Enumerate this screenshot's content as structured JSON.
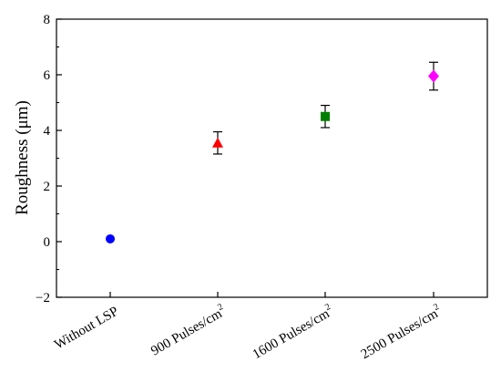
{
  "chart_data": {
    "type": "scatter",
    "title": "",
    "xlabel": "",
    "ylabel": "Roughness (μm)",
    "ylim": [
      -2,
      8
    ],
    "yticks": [
      -2,
      0,
      2,
      4,
      6,
      8
    ],
    "grid": false,
    "categories": [
      {
        "base": "Without LSP",
        "sup": ""
      },
      {
        "base": "900 Pulses/cm",
        "sup": "2"
      },
      {
        "base": "1600 Pulses/cm",
        "sup": "2"
      },
      {
        "base": "2500 Pulses/cm",
        "sup": "2"
      }
    ],
    "points": [
      {
        "value": 0.1,
        "error": 0.0,
        "marker": "circle",
        "color": "#0000ff"
      },
      {
        "value": 3.55,
        "error": 0.4,
        "marker": "triangle",
        "color": "#ff0000"
      },
      {
        "value": 4.5,
        "error": 0.4,
        "marker": "square",
        "color": "#008000"
      },
      {
        "value": 5.95,
        "error": 0.5,
        "marker": "diamond",
        "color": "#ff00ff"
      }
    ]
  }
}
